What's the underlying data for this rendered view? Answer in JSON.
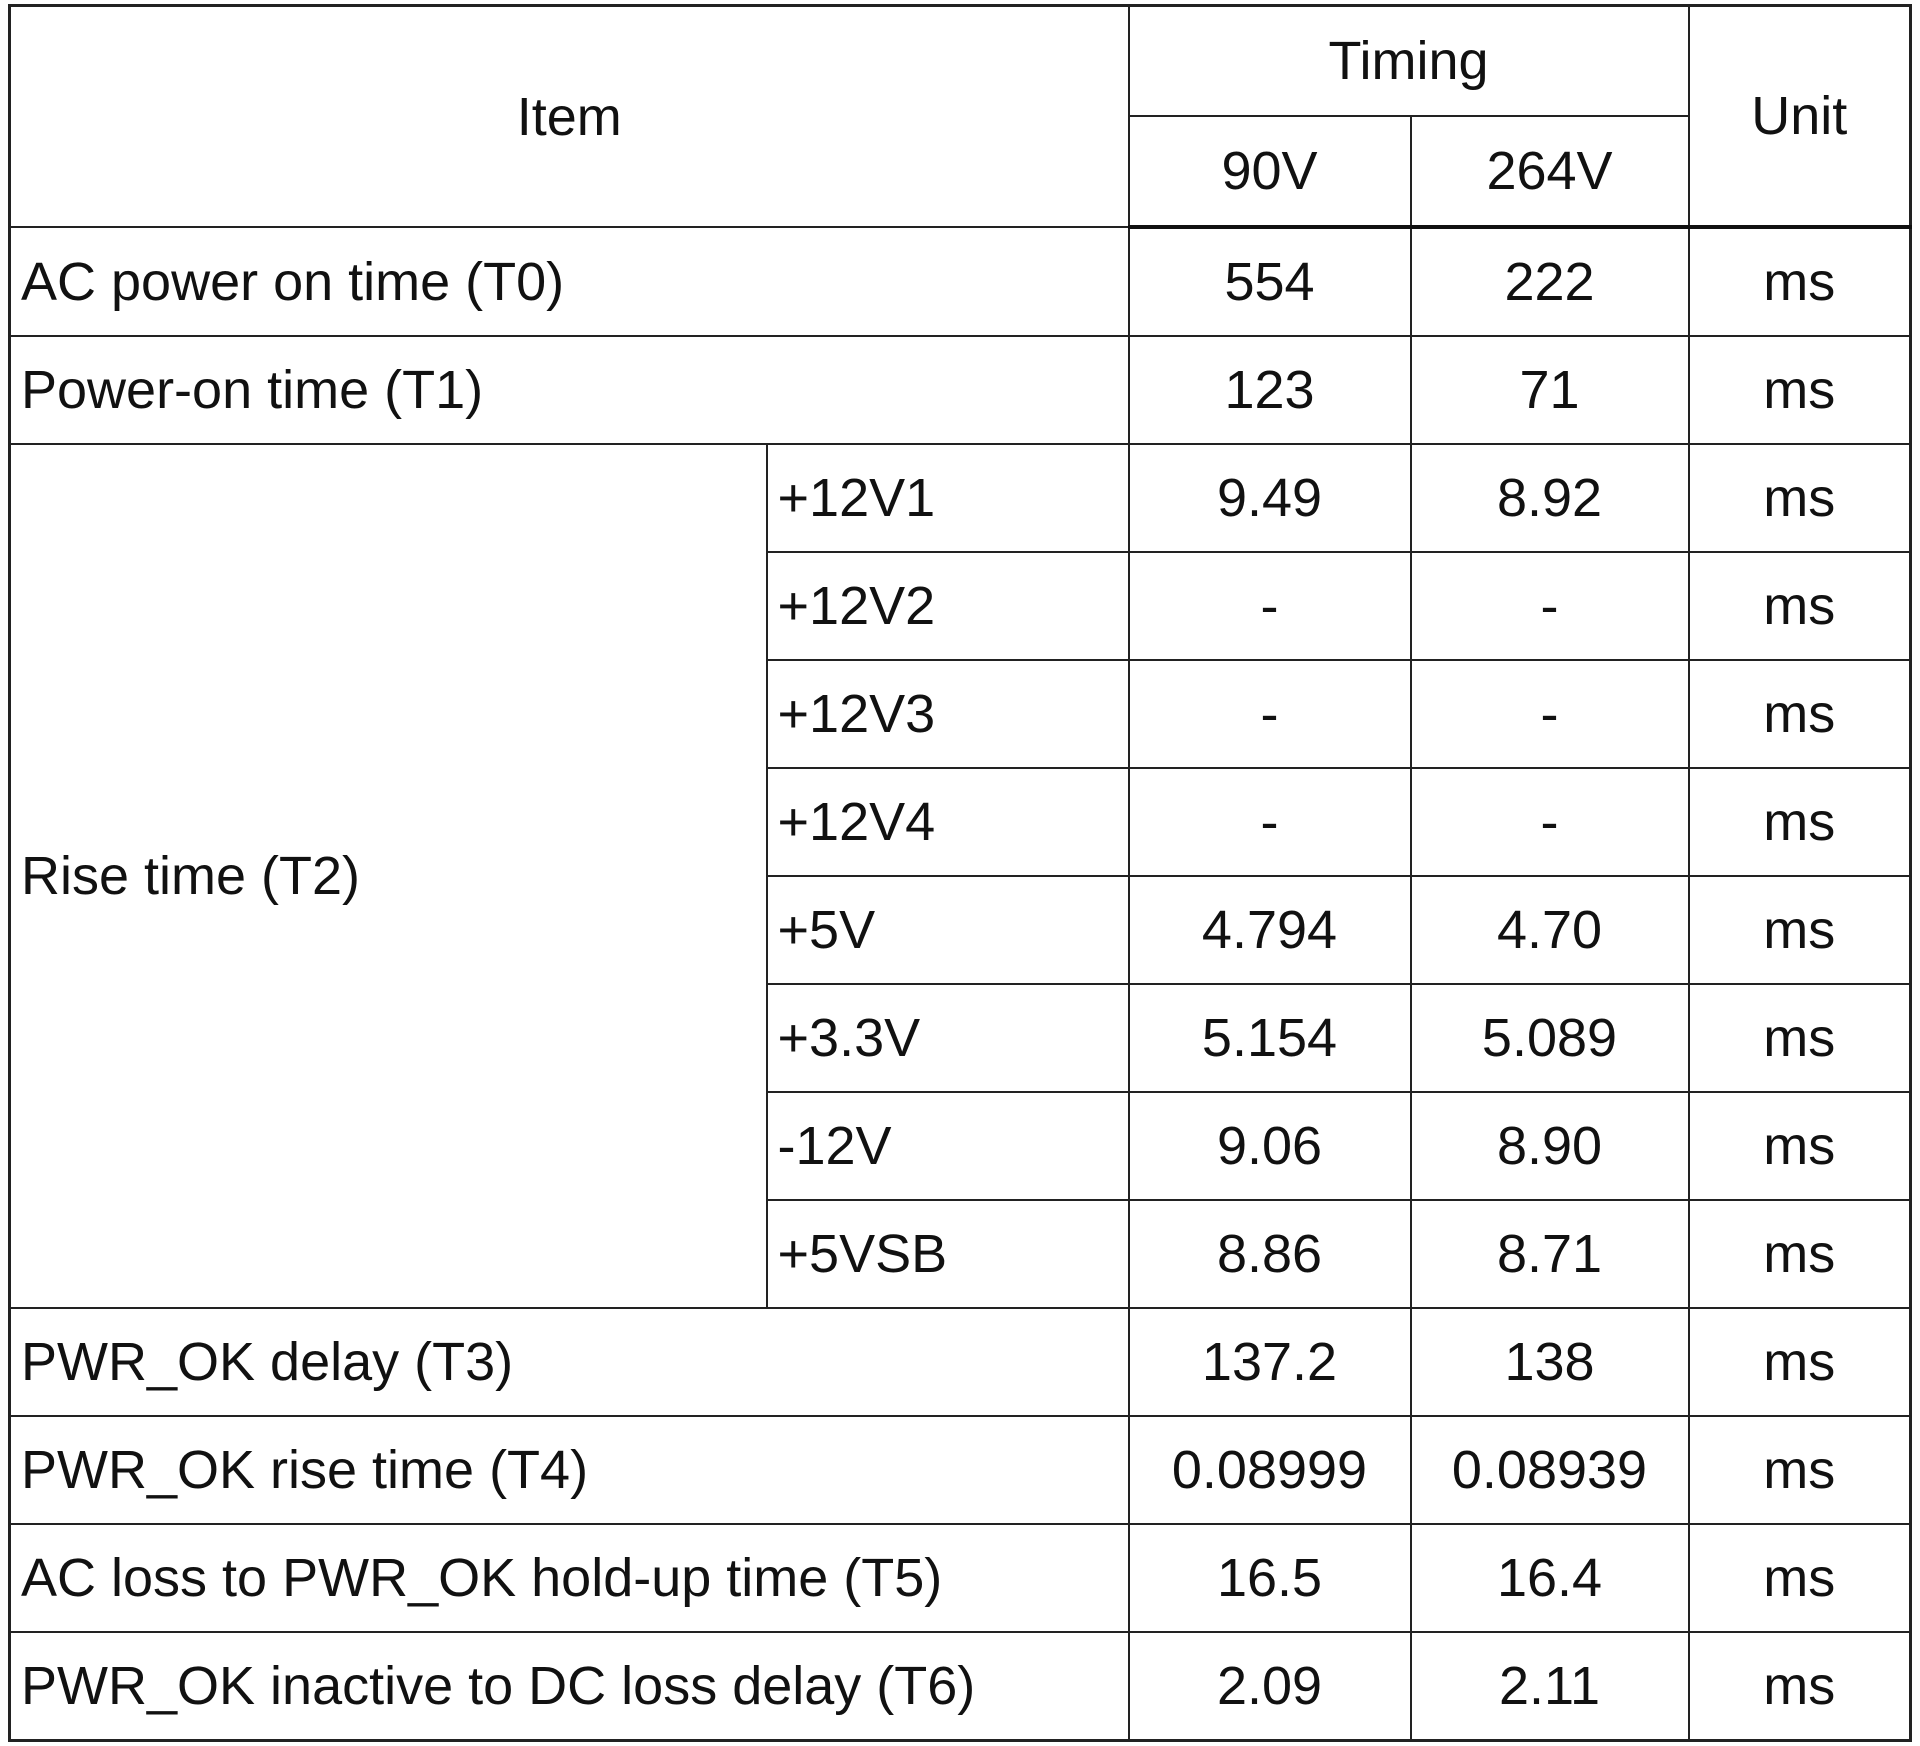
{
  "table": {
    "header": {
      "item": "Item",
      "timing": "Timing",
      "low": "90V",
      "high": "264V",
      "unit": "Unit"
    },
    "rows": [
      {
        "item": "AC power on time (T0)",
        "values": [
          "554",
          "222"
        ],
        "unit": "ms"
      },
      {
        "item": "Power-on time (T1)",
        "values": [
          "123",
          "71"
        ],
        "unit": "ms"
      },
      {
        "item": "Rise time (T2)",
        "subrows": [
          {
            "label": "+12V1",
            "values": [
              "9.49",
              "8.92"
            ],
            "unit": "ms"
          },
          {
            "label": "+12V2",
            "values": [
              "-",
              "-"
            ],
            "unit": "ms"
          },
          {
            "label": "+12V3",
            "values": [
              "-",
              "-"
            ],
            "unit": "ms"
          },
          {
            "label": "+12V4",
            "values": [
              "-",
              "-"
            ],
            "unit": "ms"
          },
          {
            "label": "+5V",
            "values": [
              "4.794",
              "4.70"
            ],
            "unit": "ms"
          },
          {
            "label": "+3.3V",
            "values": [
              "5.154",
              "5.089"
            ],
            "unit": "ms"
          },
          {
            "label": "-12V",
            "values": [
              "9.06",
              "8.90"
            ],
            "unit": "ms"
          },
          {
            "label": "+5VSB",
            "values": [
              "8.86",
              "8.71"
            ],
            "unit": "ms"
          }
        ]
      },
      {
        "item": "PWR_OK delay (T3)",
        "values": [
          "137.2",
          "138"
        ],
        "unit": "ms"
      },
      {
        "item": "PWR_OK rise time (T4)",
        "values": [
          "0.08999",
          "0.08939"
        ],
        "unit": "ms"
      },
      {
        "item": "AC loss to PWR_OK hold-up time (T5)",
        "values": [
          "16.5",
          "16.4"
        ],
        "unit": "ms"
      },
      {
        "item": "PWR_OK inactive to DC loss delay (T6)",
        "values": [
          "2.09",
          "2.11"
        ],
        "unit": "ms"
      }
    ]
  }
}
